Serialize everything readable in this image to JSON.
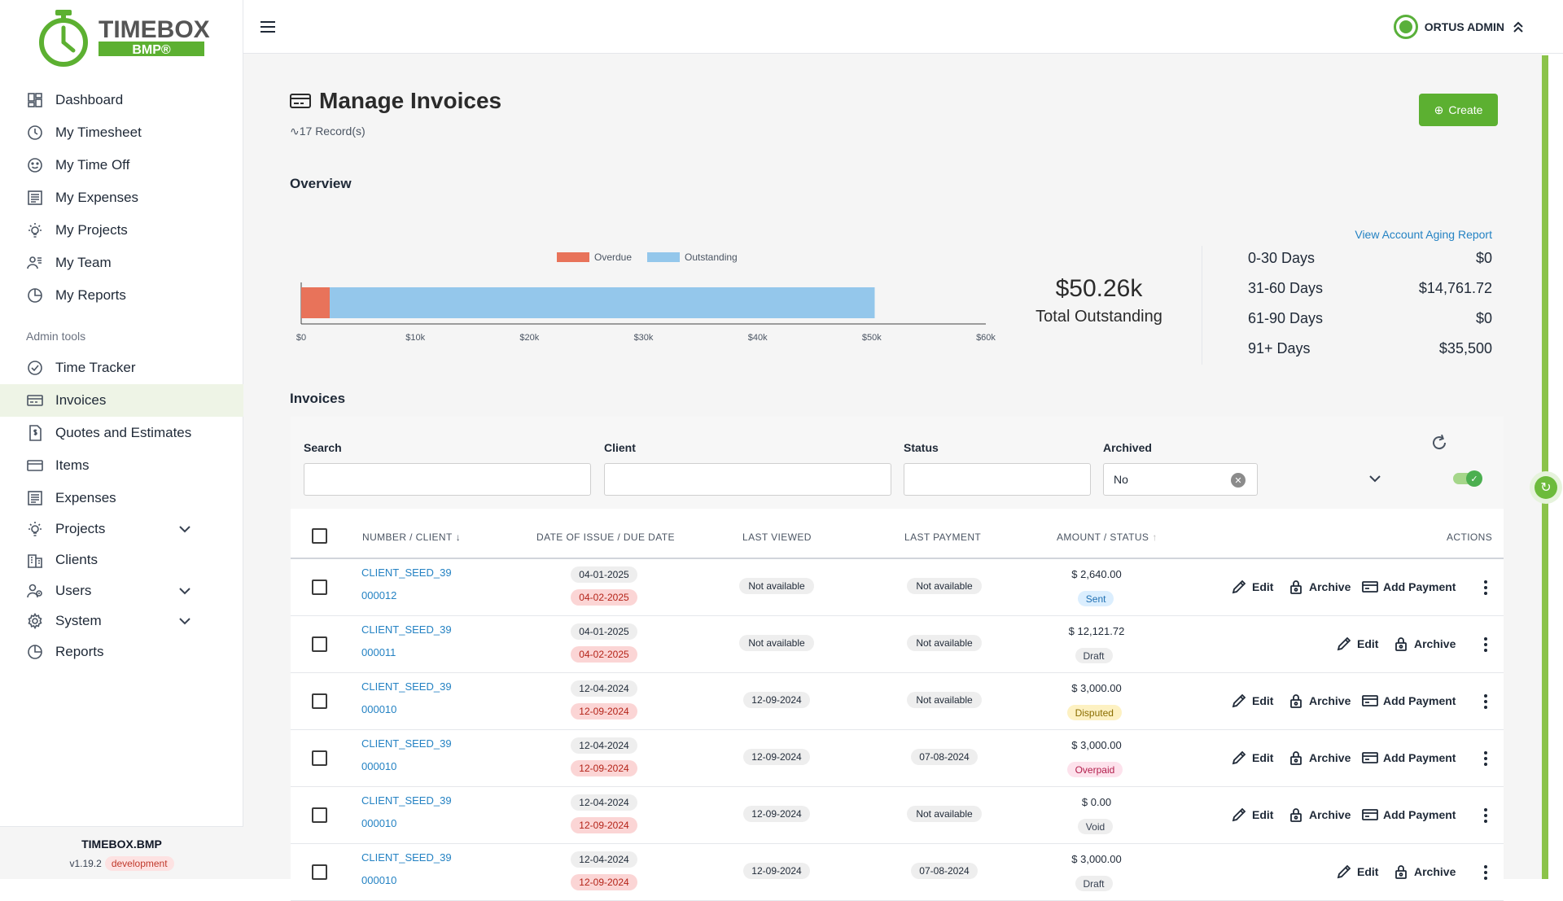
{
  "brand": {
    "name": "TIMEBOX",
    "sub": "BMP®",
    "accent": "#5cb031"
  },
  "sidebar": {
    "items": [
      {
        "label": "Dashboard",
        "icon": "dashboard-icon"
      },
      {
        "label": "My Timesheet",
        "icon": "clock-icon"
      },
      {
        "label": "My Time Off",
        "icon": "smile-icon"
      },
      {
        "label": "My Expenses",
        "icon": "receipt-icon"
      },
      {
        "label": "My Projects",
        "icon": "bulb-icon"
      },
      {
        "label": "My Team",
        "icon": "team-icon"
      },
      {
        "label": "My Reports",
        "icon": "pie-icon"
      }
    ],
    "admin_label": "Admin tools",
    "admin_items": [
      {
        "label": "Time Tracker",
        "icon": "check-circle-icon"
      },
      {
        "label": "Invoices",
        "icon": "card-icon",
        "active": true
      },
      {
        "label": "Quotes and Estimates",
        "icon": "quote-doc-icon"
      },
      {
        "label": "Items",
        "icon": "card-outline-icon"
      },
      {
        "label": "Expenses",
        "icon": "receipt-icon"
      },
      {
        "label": "Projects",
        "icon": "bulb-icon",
        "expandable": true
      },
      {
        "label": "Clients",
        "icon": "building-icon"
      },
      {
        "label": "Users",
        "icon": "users-icon",
        "expandable": true
      },
      {
        "label": "System",
        "icon": "gear-icon",
        "expandable": true
      },
      {
        "label": "Reports",
        "icon": "pie-icon"
      }
    ],
    "footer": {
      "app": "TIMEBOX.BMP",
      "version": "v1.19.2",
      "env": "development"
    }
  },
  "topbar": {
    "user": "ORTUS ADMIN"
  },
  "page": {
    "title": "Manage Invoices",
    "records": "17 Record(s)",
    "create_label": "Create",
    "overview_label": "Overview",
    "invoices_label": "Invoices"
  },
  "chart_data": {
    "type": "bar",
    "orientation": "horizontal",
    "stacked": true,
    "series": [
      {
        "name": "Overdue",
        "values": [
          2500
        ],
        "color": "#e8735a"
      },
      {
        "name": "Outstanding",
        "values": [
          47760
        ],
        "color": "#94c7eb"
      }
    ],
    "xticks": [
      "$0",
      "$10k",
      "$20k",
      "$30k",
      "$40k",
      "$50k",
      "$60k"
    ],
    "xlim": [
      0,
      60000
    ],
    "legend": "top-center"
  },
  "overview": {
    "total_value": "$50.26k",
    "total_label": "Total Outstanding",
    "aging_link": "View Account Aging Report",
    "aging": [
      {
        "label": "0-30 Days",
        "value": "$0"
      },
      {
        "label": "31-60 Days",
        "value": "$14,761.72"
      },
      {
        "label": "61-90 Days",
        "value": "$0"
      },
      {
        "label": "91+ Days",
        "value": "$35,500"
      }
    ]
  },
  "filters": {
    "search_label": "Search",
    "client_label": "Client",
    "status_label": "Status",
    "archived_label": "Archived",
    "archived_value": "No"
  },
  "table": {
    "headers": {
      "number_client": "NUMBER / CLIENT",
      "dates": "DATE OF ISSUE / DUE DATE",
      "last_viewed": "LAST VIEWED",
      "last_payment": "LAST PAYMENT",
      "amount_status": "AMOUNT / STATUS",
      "actions": "ACTIONS"
    },
    "action_labels": {
      "edit": "Edit",
      "archive": "Archive",
      "add_payment": "Add Payment"
    },
    "rows": [
      {
        "client": "CLIENT_SEED_39",
        "number": "000012",
        "issue": "04-01-2025",
        "due": "04-02-2025",
        "last_viewed": "Not available",
        "last_payment": "Not available",
        "amount": "$ 2,640.00",
        "status": "Sent",
        "status_class": "st-sent",
        "add_payment": true
      },
      {
        "client": "CLIENT_SEED_39",
        "number": "000011",
        "issue": "04-01-2025",
        "due": "04-02-2025",
        "last_viewed": "Not available",
        "last_payment": "Not available",
        "amount": "$ 12,121.72",
        "status": "Draft",
        "status_class": "st-draft",
        "add_payment": false
      },
      {
        "client": "CLIENT_SEED_39",
        "number": "000010",
        "issue": "12-04-2024",
        "due": "12-09-2024",
        "last_viewed": "12-09-2024",
        "last_payment": "Not available",
        "amount": "$ 3,000.00",
        "status": "Disputed",
        "status_class": "st-disputed",
        "add_payment": true
      },
      {
        "client": "CLIENT_SEED_39",
        "number": "000010",
        "issue": "12-04-2024",
        "due": "12-09-2024",
        "last_viewed": "12-09-2024",
        "last_payment": "07-08-2024",
        "amount": "$ 3,000.00",
        "status": "Overpaid",
        "status_class": "st-overpaid",
        "add_payment": true
      },
      {
        "client": "CLIENT_SEED_39",
        "number": "000010",
        "issue": "12-04-2024",
        "due": "12-09-2024",
        "last_viewed": "12-09-2024",
        "last_payment": "Not available",
        "amount": "$ 0.00",
        "status": "Void",
        "status_class": "st-void",
        "add_payment": true
      },
      {
        "client": "CLIENT_SEED_39",
        "number": "000010",
        "issue": "12-04-2024",
        "due": "12-09-2024",
        "last_viewed": "12-09-2024",
        "last_payment": "07-08-2024",
        "amount": "$ 3,000.00",
        "status": "Draft",
        "status_class": "st-draft",
        "add_payment": false
      }
    ]
  }
}
